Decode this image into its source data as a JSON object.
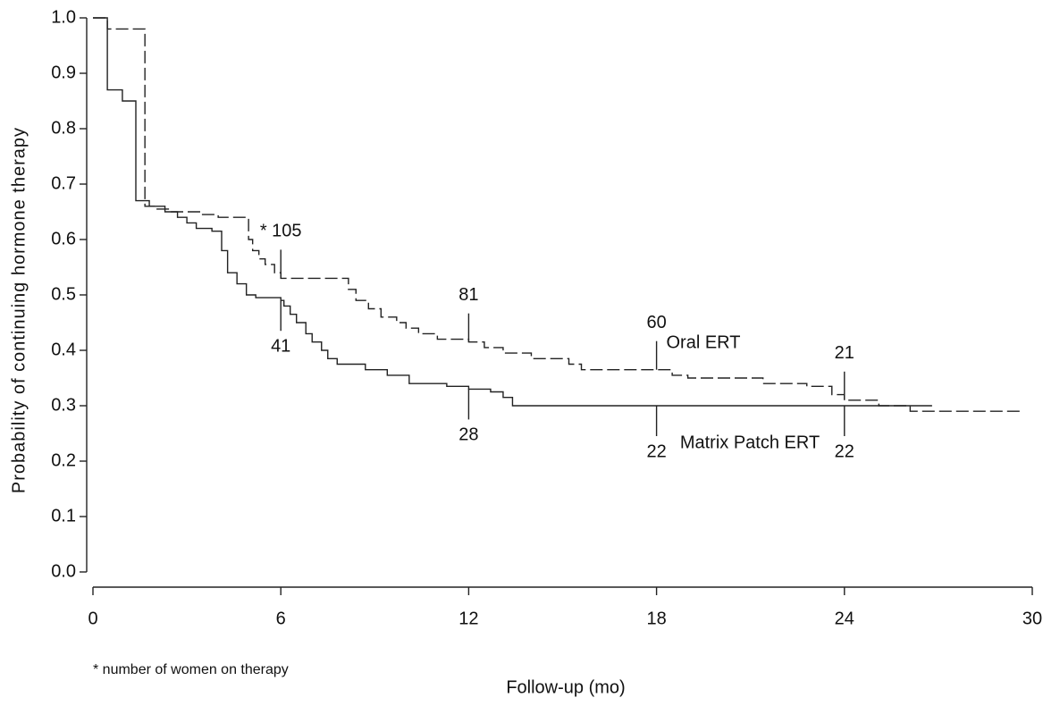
{
  "chart_data": {
    "type": "step",
    "x_label": "Follow-up (mo)",
    "y_label": "Probability of continuing hormone therapy",
    "footnote": "* number of women on therapy",
    "xlim": [
      0,
      30
    ],
    "xticks": [
      0,
      6,
      12,
      18,
      24,
      30
    ],
    "ylim": [
      0,
      1
    ],
    "yticks": [
      {
        "value": 0,
        "label": "0.0"
      },
      0.1,
      0.2,
      0.3,
      0.4,
      0.5,
      0.6,
      0.7,
      0.8,
      0.9,
      {
        "value": 1,
        "label": "1.0"
      }
    ],
    "series": [
      {
        "name": "Oral ERT",
        "color": "#222222",
        "dash": true,
        "x": [
          0,
          0.46,
          1.66,
          2.0,
          2.5,
          3.5,
          4.0,
          4.97,
          5.1,
          5.3,
          5.5,
          5.8,
          6.0,
          8.16,
          8.4,
          8.8,
          9.2,
          9.7,
          10.0,
          10.4,
          11.0,
          12.0,
          12.5,
          13.1,
          14.0,
          15.2,
          15.6,
          18.5,
          19.0,
          21.4,
          22.8,
          23.6,
          24.0,
          25.1,
          26.1,
          29.6
        ],
        "values": [
          1.0,
          0.98,
          0.66,
          0.655,
          0.65,
          0.645,
          0.64,
          0.6,
          0.58,
          0.565,
          0.555,
          0.54,
          0.53,
          0.51,
          0.49,
          0.475,
          0.46,
          0.45,
          0.44,
          0.43,
          0.42,
          0.415,
          0.405,
          0.395,
          0.385,
          0.375,
          0.365,
          0.355,
          0.35,
          0.34,
          0.335,
          0.32,
          0.31,
          0.3,
          0.29,
          0.29
        ],
        "at_risk_times": [
          6,
          12,
          18,
          24
        ],
        "at_risk": [
          105,
          81,
          60,
          21
        ],
        "at_risk_labels": [
          "* 105",
          "81",
          "60",
          "21"
        ]
      },
      {
        "name": "Matrix Patch ERT",
        "color": "#222222",
        "dash": false,
        "x": [
          0,
          0.46,
          0.94,
          1.37,
          1.8,
          2.3,
          2.7,
          3.0,
          3.3,
          3.8,
          4.11,
          4.3,
          4.6,
          4.9,
          5.2,
          6.0,
          6.1,
          6.3,
          6.5,
          6.8,
          7.0,
          7.3,
          7.5,
          7.8,
          8.7,
          9.4,
          10.1,
          11.3,
          12.0,
          12.7,
          13.1,
          13.4,
          26.8
        ],
        "values": [
          1.0,
          0.87,
          0.85,
          0.67,
          0.66,
          0.65,
          0.64,
          0.63,
          0.62,
          0.615,
          0.58,
          0.54,
          0.52,
          0.5,
          0.495,
          0.49,
          0.48,
          0.465,
          0.45,
          0.43,
          0.415,
          0.4,
          0.385,
          0.375,
          0.365,
          0.355,
          0.34,
          0.335,
          0.33,
          0.325,
          0.315,
          0.3,
          0.3
        ],
        "at_risk_times": [
          6,
          12,
          18,
          24
        ],
        "at_risk": [
          41,
          28,
          22,
          22
        ]
      }
    ]
  }
}
